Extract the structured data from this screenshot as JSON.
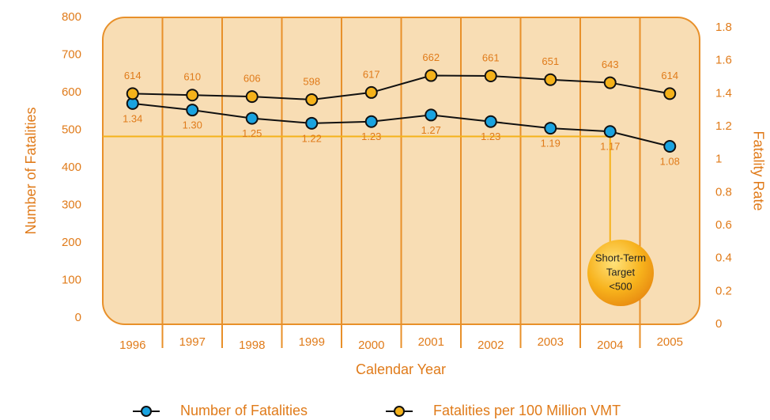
{
  "chart_data": {
    "type": "line",
    "categories": [
      "1996",
      "1997",
      "1998",
      "1999",
      "2000",
      "2001",
      "2002",
      "2003",
      "2004",
      "2005"
    ],
    "series": [
      {
        "name": "Number of Fatalities",
        "color": "#1aa3e0",
        "axis": "y2",
        "values": [
          1.34,
          1.3,
          1.25,
          1.22,
          1.23,
          1.27,
          1.23,
          1.19,
          1.17,
          1.08
        ],
        "value_labels": [
          "1.34",
          "1.30",
          "1.25",
          "1.22",
          "1.23",
          "1.27",
          "1.23",
          "1.19",
          "1.17",
          "1.08"
        ]
      },
      {
        "name": "Fatalities per 100 Million VMT",
        "color": "#f5b21a",
        "values": [
          614,
          610,
          606,
          598,
          617,
          662,
          661,
          651,
          643,
          614
        ]
      }
    ],
    "xlabel": "Calendar Year",
    "ylabel": "Number of Fatalities",
    "y2label": "Fatality Rate",
    "ylim": [
      0,
      800
    ],
    "yticks": [
      0,
      100,
      200,
      300,
      400,
      500,
      600,
      700,
      800
    ],
    "y2lim": [
      0,
      1.8
    ],
    "y2ticks": [
      0,
      0.2,
      0.4,
      0.6,
      0.8,
      1,
      1.2,
      1.4,
      1.6,
      1.8
    ],
    "target": 500,
    "annotation": [
      "Short-Term",
      "Target",
      "<500"
    ]
  }
}
